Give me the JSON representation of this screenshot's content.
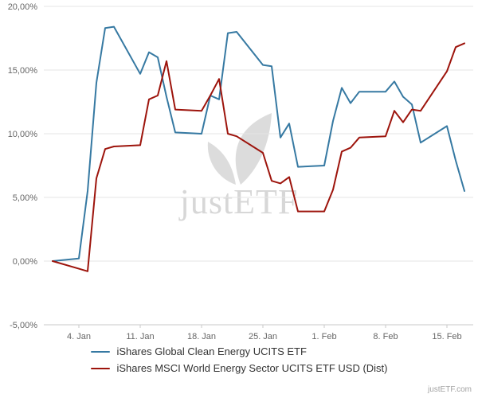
{
  "chart_data": {
    "type": "line",
    "title": "",
    "x_dates": [
      "2021-01-01",
      "2021-01-04",
      "2021-01-05",
      "2021-01-06",
      "2021-01-07",
      "2021-01-08",
      "2021-01-11",
      "2021-01-12",
      "2021-01-13",
      "2021-01-14",
      "2021-01-15",
      "2021-01-18",
      "2021-01-19",
      "2021-01-20",
      "2021-01-21",
      "2021-01-22",
      "2021-01-25",
      "2021-01-26",
      "2021-01-27",
      "2021-01-28",
      "2021-01-29",
      "2021-02-01",
      "2021-02-02",
      "2021-02-03",
      "2021-02-04",
      "2021-02-05",
      "2021-02-08",
      "2021-02-09",
      "2021-02-10",
      "2021-02-11",
      "2021-02-12",
      "2021-02-15",
      "2021-02-16",
      "2021-02-17"
    ],
    "series": [
      {
        "name": "iShares Global Clean Energy UCITS ETF",
        "color": "#3679a2",
        "values": [
          0.0,
          0.2,
          5.5,
          14.0,
          18.3,
          18.4,
          14.7,
          16.4,
          16.0,
          12.9,
          10.1,
          10.0,
          13.0,
          12.7,
          17.9,
          18.0,
          15.4,
          15.3,
          9.7,
          10.8,
          7.4,
          7.5,
          11.0,
          13.6,
          12.4,
          13.3,
          13.3,
          14.1,
          12.9,
          12.3,
          9.3,
          10.6,
          7.9,
          5.5
        ]
      },
      {
        "name": "iShares MSCI World Energy Sector UCITS ETF USD (Dist)",
        "color": "#9d140c",
        "values": [
          0.0,
          -0.6,
          -0.8,
          6.5,
          8.8,
          9.0,
          9.1,
          12.7,
          13.0,
          15.7,
          11.9,
          11.8,
          13.0,
          14.3,
          10.0,
          9.8,
          8.5,
          6.3,
          6.1,
          6.6,
          3.9,
          3.9,
          5.6,
          8.6,
          8.9,
          9.7,
          9.8,
          11.8,
          10.9,
          11.9,
          11.8,
          14.9,
          16.8,
          17.1
        ]
      }
    ],
    "ylim": [
      -5,
      20
    ],
    "x_domain": [
      "2020-12-31",
      "2021-02-18"
    ],
    "y_ticks": [
      {
        "v": 20,
        "label": "20,00%"
      },
      {
        "v": 15,
        "label": "15,00%"
      },
      {
        "v": 10,
        "label": "10,00%"
      },
      {
        "v": 5,
        "label": "5,00%"
      },
      {
        "v": 0,
        "label": "0,00%"
      },
      {
        "v": -5,
        "label": "-5,00%"
      }
    ],
    "x_ticks": [
      {
        "d": "2021-01-04",
        "label": "4. Jan"
      },
      {
        "d": "2021-01-11",
        "label": "11. Jan"
      },
      {
        "d": "2021-01-18",
        "label": "18. Jan"
      },
      {
        "d": "2021-01-25",
        "label": "25. Jan"
      },
      {
        "d": "2021-02-01",
        "label": "1. Feb"
      },
      {
        "d": "2021-02-08",
        "label": "8. Feb"
      },
      {
        "d": "2021-02-15",
        "label": "15. Feb"
      }
    ],
    "grid": "horizontal-only",
    "legend_position": "bottom",
    "ylabel": "",
    "xlabel": ""
  },
  "watermark": {
    "text": "justETF"
  },
  "footer": {
    "brand": "justETF.com"
  },
  "style": {
    "grid_color": "#e4e4e4",
    "axis_color": "#c9c9c9",
    "tick_label_color": "#666666",
    "watermark_color": "#d7d7d7"
  }
}
